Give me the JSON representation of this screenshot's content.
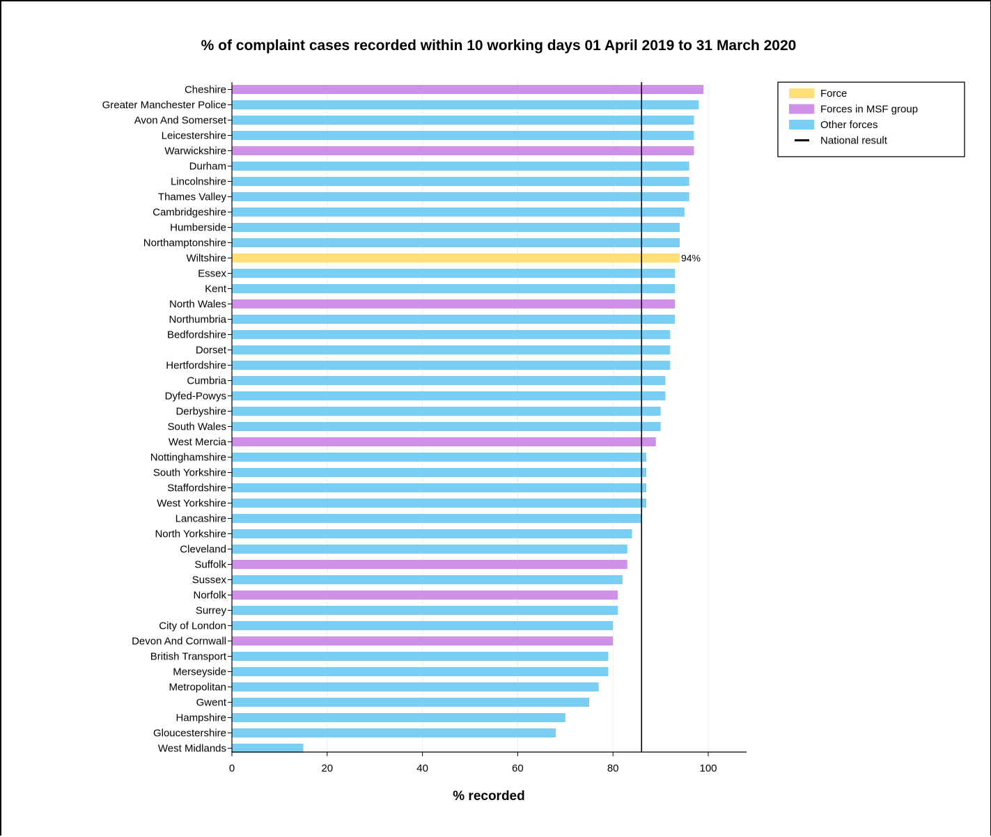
{
  "colors": {
    "force": "#FFDE75",
    "msf": "#CF91E8",
    "other": "#78CEF3",
    "national": "#000000",
    "grid": "#ECECEC"
  },
  "chart_data": {
    "type": "bar",
    "orientation": "horizontal",
    "title": "% of complaint cases recorded within 10 working days 01 April 2019 to 31 March 2020",
    "xlabel": "% recorded",
    "ylabel": "",
    "xlim": [
      0,
      108
    ],
    "xticks": [
      0,
      20,
      40,
      60,
      80,
      100
    ],
    "grid": "vertical",
    "legend_position": "top-right",
    "national_result": 86,
    "highlight_label": "94%",
    "legend": [
      {
        "key": "force",
        "label": "Force",
        "kind": "box"
      },
      {
        "key": "msf",
        "label": "Forces in MSF group",
        "kind": "box"
      },
      {
        "key": "other",
        "label": "Other forces",
        "kind": "box"
      },
      {
        "key": "national",
        "label": "National result",
        "kind": "line"
      }
    ],
    "categories": [
      "Cheshire",
      "Greater Manchester Police",
      "Avon And Somerset",
      "Leicestershire",
      "Warwickshire",
      "Durham",
      "Lincolnshire",
      "Thames Valley",
      "Cambridgeshire",
      "Humberside",
      "Northamptonshire",
      "Wiltshire",
      "Essex",
      "Kent",
      "North Wales",
      "Northumbria",
      "Bedfordshire",
      "Dorset",
      "Hertfordshire",
      "Cumbria",
      "Dyfed-Powys",
      "Derbyshire",
      "South Wales",
      "West Mercia",
      "Nottinghamshire",
      "South Yorkshire",
      "Staffordshire",
      "West Yorkshire",
      "Lancashire",
      "North Yorkshire",
      "Cleveland",
      "Suffolk",
      "Sussex",
      "Norfolk",
      "Surrey",
      "City of London",
      "Devon And Cornwall",
      "British Transport",
      "Merseyside",
      "Metropolitan",
      "Gwent",
      "Hampshire",
      "Gloucestershire",
      "West Midlands"
    ],
    "values": [
      99,
      98,
      97,
      97,
      97,
      96,
      96,
      96,
      95,
      94,
      94,
      94,
      93,
      93,
      93,
      93,
      92,
      92,
      92,
      91,
      91,
      90,
      90,
      89,
      87,
      87,
      87,
      87,
      86,
      84,
      83,
      83,
      82,
      81,
      81,
      80,
      80,
      79,
      79,
      77,
      75,
      70,
      68,
      15
    ],
    "groups": [
      "msf",
      "other",
      "other",
      "other",
      "msf",
      "other",
      "other",
      "other",
      "other",
      "other",
      "other",
      "force",
      "other",
      "other",
      "msf",
      "other",
      "other",
      "other",
      "other",
      "other",
      "other",
      "other",
      "other",
      "msf",
      "other",
      "other",
      "other",
      "other",
      "other",
      "other",
      "other",
      "msf",
      "other",
      "msf",
      "other",
      "other",
      "msf",
      "other",
      "other",
      "other",
      "other",
      "other",
      "other",
      "other"
    ]
  }
}
